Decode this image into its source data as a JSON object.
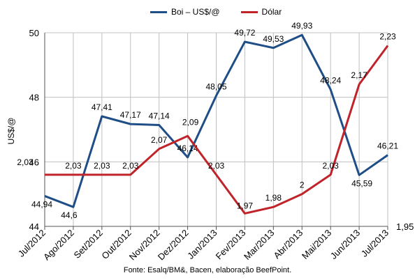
{
  "legend": {
    "items": [
      {
        "label": "Boi – US$/@",
        "color": "#1f4e86"
      },
      {
        "label": "Dólar",
        "color": "#c0232a"
      }
    ]
  },
  "source": "Fonte: Esalq/BM&, Bacen, elaboração BeefPoint.",
  "chart_data": {
    "type": "line",
    "title": "",
    "categories": [
      "Jul/2012",
      "Ago/2012",
      "Set/2012",
      "Out/2012",
      "Nov/2012",
      "Dez/2012",
      "Jan/2013",
      "Fev/2013",
      "Mar/2013",
      "Abr/2013",
      "Mai/2013",
      "Jun/2013",
      "Jul/2013"
    ],
    "ylabel": "US$/@",
    "ylim": [
      44,
      50
    ],
    "yticks": [
      "44",
      "46",
      "48",
      "50"
    ],
    "y2_tick_label": "1,95",
    "y2_range": [
      1.95,
      2.25
    ],
    "grid": true,
    "legend_position": "top",
    "series": [
      {
        "name": "Boi – US$/@",
        "axis": "left",
        "color": "#1f4e86",
        "values": [
          44.94,
          44.6,
          47.41,
          47.17,
          47.14,
          46.14,
          48.05,
          49.72,
          49.53,
          49.93,
          48.24,
          45.59,
          46.21
        ],
        "labels": [
          "44,94",
          "44,6",
          "47,41",
          "47,17",
          "47,14",
          "46,14",
          "48,05",
          "49,72",
          "49,53",
          "49,93",
          "48,24",
          "45,59",
          "46,21"
        ]
      },
      {
        "name": "Dólar",
        "axis": "right",
        "color": "#c0232a",
        "values": [
          2.03,
          2.03,
          2.03,
          2.03,
          2.07,
          2.09,
          2.03,
          1.97,
          1.98,
          2.0,
          2.03,
          2.17,
          2.23
        ],
        "labels": [
          "2,03",
          "2,03",
          "2,03",
          "2,03",
          "2,07",
          "2,09",
          "2,03",
          "1,97",
          "1,98",
          "2",
          "2,03",
          "2,17",
          "2,23"
        ]
      }
    ]
  }
}
